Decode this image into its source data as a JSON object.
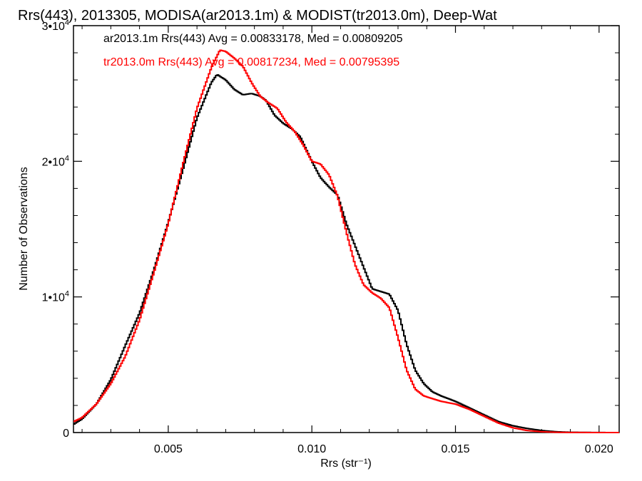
{
  "chart_data": {
    "type": "line",
    "title": "Rrs(443), 2013305, MODISA(ar2013.1m) & MODIST(tr2013.0m), Deep-Wat",
    "xlabel": "Rrs (str⁻¹)",
    "ylabel": "Number of Observations",
    "xlim": [
      0.0017,
      0.0207
    ],
    "ylim": [
      0,
      30000
    ],
    "x_ticks": [
      {
        "value": 0.005,
        "label": "0.005"
      },
      {
        "value": 0.01,
        "label": "0.010"
      },
      {
        "value": 0.015,
        "label": "0.015"
      },
      {
        "value": 0.02,
        "label": "0.020"
      }
    ],
    "y_ticks": [
      {
        "value": 0,
        "mant": "0",
        "exp": ""
      },
      {
        "value": 10000,
        "mant": "1•10",
        "exp": "4"
      },
      {
        "value": 20000,
        "mant": "2•10",
        "exp": "4"
      },
      {
        "value": 30000,
        "mant": "3•10",
        "exp": "4"
      }
    ],
    "grid": false,
    "legend_position": "top-left",
    "series": [
      {
        "name": "ar2013.1m Rrs(443) Avg = 0.00833178, Med = 0.00809205",
        "color": "#000000",
        "points": [
          [
            0.0017,
            600
          ],
          [
            0.002,
            1000
          ],
          [
            0.0025,
            2100
          ],
          [
            0.003,
            3900
          ],
          [
            0.0035,
            6400
          ],
          [
            0.004,
            8800
          ],
          [
            0.0045,
            12000
          ],
          [
            0.005,
            15500
          ],
          [
            0.0055,
            19300
          ],
          [
            0.006,
            23200
          ],
          [
            0.0065,
            25800
          ],
          [
            0.0067,
            26400
          ],
          [
            0.007,
            26000
          ],
          [
            0.0073,
            25300
          ],
          [
            0.0076,
            24900
          ],
          [
            0.0079,
            25000
          ],
          [
            0.0082,
            24800
          ],
          [
            0.0084,
            24500
          ],
          [
            0.0087,
            23400
          ],
          [
            0.009,
            22800
          ],
          [
            0.0093,
            22400
          ],
          [
            0.0096,
            21800
          ],
          [
            0.01,
            20000
          ],
          [
            0.0103,
            18800
          ],
          [
            0.0106,
            18100
          ],
          [
            0.0109,
            17500
          ],
          [
            0.0112,
            15400
          ],
          [
            0.0115,
            13800
          ],
          [
            0.0118,
            12200
          ],
          [
            0.0121,
            10600
          ],
          [
            0.0124,
            10400
          ],
          [
            0.0127,
            10200
          ],
          [
            0.013,
            9000
          ],
          [
            0.0133,
            6500
          ],
          [
            0.0136,
            4600
          ],
          [
            0.0139,
            3600
          ],
          [
            0.0142,
            3000
          ],
          [
            0.0145,
            2700
          ],
          [
            0.015,
            2300
          ],
          [
            0.0155,
            1800
          ],
          [
            0.016,
            1300
          ],
          [
            0.0165,
            800
          ],
          [
            0.017,
            500
          ],
          [
            0.0175,
            300
          ],
          [
            0.018,
            150
          ],
          [
            0.0185,
            60
          ],
          [
            0.019,
            20
          ],
          [
            0.02,
            5
          ],
          [
            0.0207,
            0
          ]
        ]
      },
      {
        "name": "tr2013.0m Rrs(443) Avg = 0.00817234, Med = 0.00795395",
        "color": "#ff0000",
        "points": [
          [
            0.0017,
            800
          ],
          [
            0.002,
            1100
          ],
          [
            0.0025,
            2100
          ],
          [
            0.003,
            3600
          ],
          [
            0.0035,
            5600
          ],
          [
            0.004,
            8300
          ],
          [
            0.0045,
            11800
          ],
          [
            0.005,
            15400
          ],
          [
            0.0055,
            19700
          ],
          [
            0.006,
            23900
          ],
          [
            0.0065,
            26900
          ],
          [
            0.0068,
            28200
          ],
          [
            0.007,
            28100
          ],
          [
            0.0073,
            27600
          ],
          [
            0.0076,
            27000
          ],
          [
            0.0079,
            25800
          ],
          [
            0.0082,
            24800
          ],
          [
            0.0085,
            24300
          ],
          [
            0.0088,
            23900
          ],
          [
            0.0091,
            22900
          ],
          [
            0.0094,
            22200
          ],
          [
            0.0097,
            21200
          ],
          [
            0.01,
            20000
          ],
          [
            0.0103,
            19800
          ],
          [
            0.0106,
            19000
          ],
          [
            0.0109,
            17400
          ],
          [
            0.0112,
            14800
          ],
          [
            0.0115,
            12400
          ],
          [
            0.0118,
            10900
          ],
          [
            0.0121,
            10300
          ],
          [
            0.0124,
            9900
          ],
          [
            0.0127,
            9200
          ],
          [
            0.013,
            7000
          ],
          [
            0.0133,
            4600
          ],
          [
            0.0136,
            3200
          ],
          [
            0.0139,
            2700
          ],
          [
            0.0142,
            2500
          ],
          [
            0.0145,
            2300
          ],
          [
            0.015,
            2100
          ],
          [
            0.0155,
            1700
          ],
          [
            0.016,
            1200
          ],
          [
            0.0165,
            700
          ],
          [
            0.017,
            350
          ],
          [
            0.0175,
            150
          ],
          [
            0.018,
            60
          ],
          [
            0.0185,
            20
          ],
          [
            0.019,
            5
          ],
          [
            0.0207,
            0
          ]
        ]
      }
    ]
  }
}
